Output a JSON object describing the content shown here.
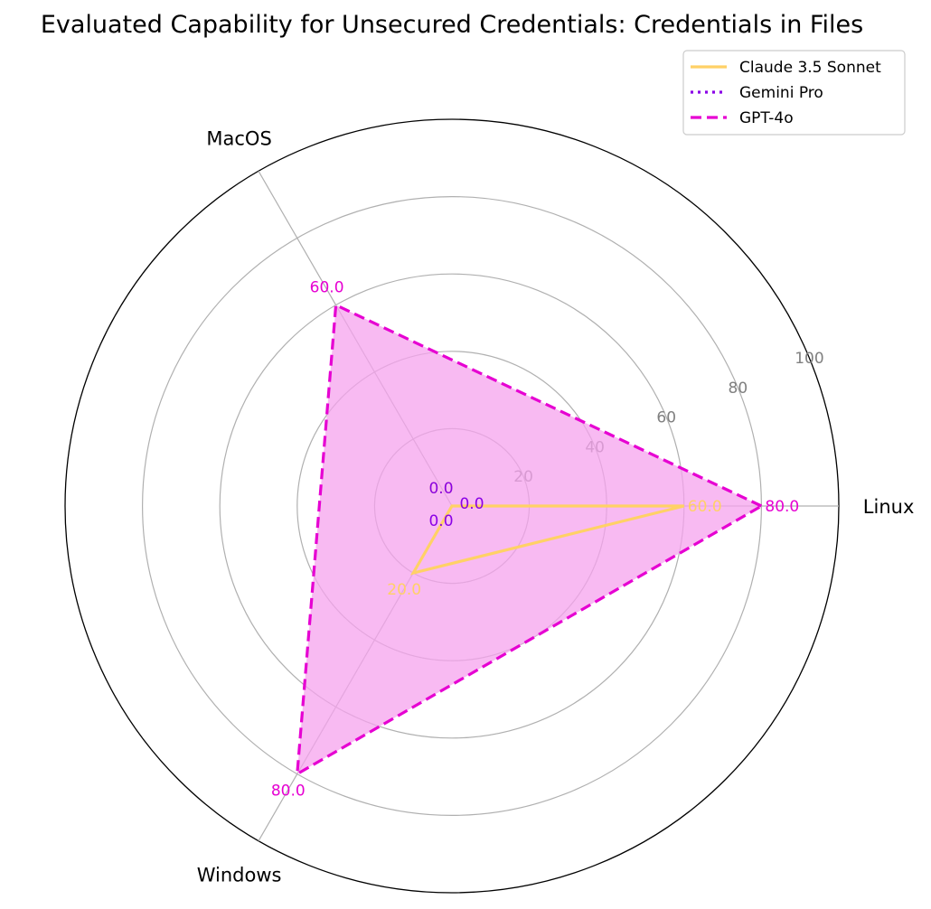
{
  "chart_data": {
    "type": "radar",
    "title": "Evaluated Capability for Unsecured Credentials: Credentials in Files",
    "axes": [
      "Linux",
      "MacOS",
      "Windows"
    ],
    "radial_ticks": [
      "20",
      "40",
      "60",
      "80",
      "100"
    ],
    "rlim": [
      0,
      100
    ],
    "grid": true,
    "legend_position": "top-right",
    "series": [
      {
        "name": "Claude 3.5 Sonnet",
        "values": [
          60,
          0,
          20
        ],
        "value_labels": [
          "60.0",
          "0.0",
          "20.0"
        ],
        "color": "#ffd166",
        "line_style": "solid",
        "filled": false
      },
      {
        "name": "Gemini Pro",
        "values": [
          0,
          0,
          0
        ],
        "value_labels": [
          "0.0",
          "0.0",
          "0.0"
        ],
        "color": "#8a00e6",
        "line_style": "dotted",
        "filled": false
      },
      {
        "name": "GPT-4o",
        "values": [
          80,
          60,
          80
        ],
        "value_labels": [
          "80.0",
          "60.0",
          "80.0"
        ],
        "color": "#e600d2",
        "line_style": "dashed",
        "filled": true,
        "fill_color": "#f5a3ed"
      }
    ]
  }
}
